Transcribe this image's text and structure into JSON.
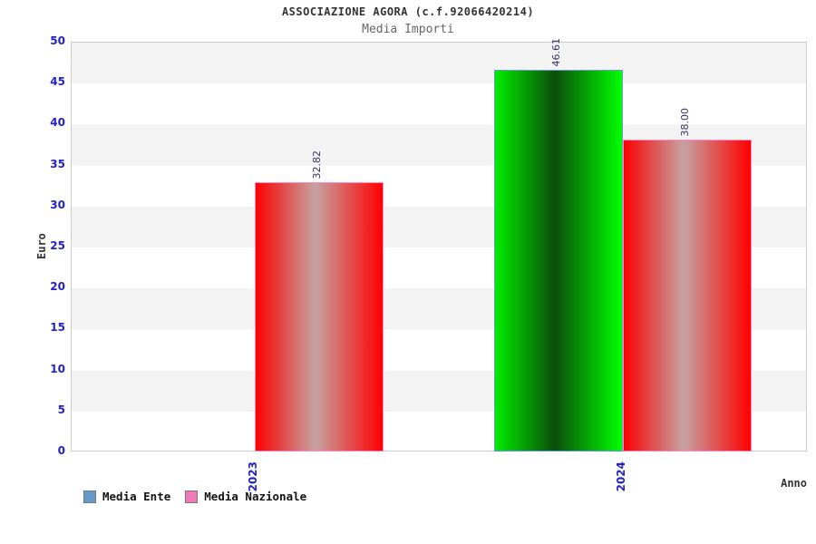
{
  "chart_data": {
    "type": "bar",
    "title": "ASSOCIAZIONE AGORA (c.f.92066420214)",
    "subtitle": "Media Importi",
    "xlabel": "Anno",
    "ylabel": "Euro",
    "categories": [
      "2023",
      "2024"
    ],
    "series": [
      {
        "name": "Media Ente",
        "values": [
          null,
          46.61
        ],
        "legend_color": "#6699cc",
        "gradient": [
          "#00ee00",
          "#0b4e0b",
          "#00ff00"
        ],
        "outline": "#6699dd"
      },
      {
        "name": "Media Nazionale",
        "values": [
          32.82,
          38.0
        ],
        "legend_color": "#ee7ab8",
        "gradient": [
          "#fb0000",
          "#c6a2a2",
          "#ff0000"
        ],
        "outline": "#ff86c4"
      }
    ],
    "value_labels": [
      [
        "",
        "46.61"
      ],
      [
        "32.82",
        "38.00"
      ]
    ],
    "value_label_decimals": 2,
    "ylim": [
      0,
      50
    ],
    "ytick_step": 5,
    "yticks": [
      0,
      5,
      10,
      15,
      20,
      25,
      30,
      35,
      40,
      45,
      50
    ],
    "grid": "horizontal-alternating-bands",
    "band_colors": [
      "#f3f3f3",
      "#ffffff"
    ],
    "legend_position": "bottom-left",
    "tick_label_color": "#2222cc",
    "value_label_color": "#333366",
    "title_color": "#333333",
    "subtitle_color": "#666666",
    "axis_title_color": "#333333"
  }
}
